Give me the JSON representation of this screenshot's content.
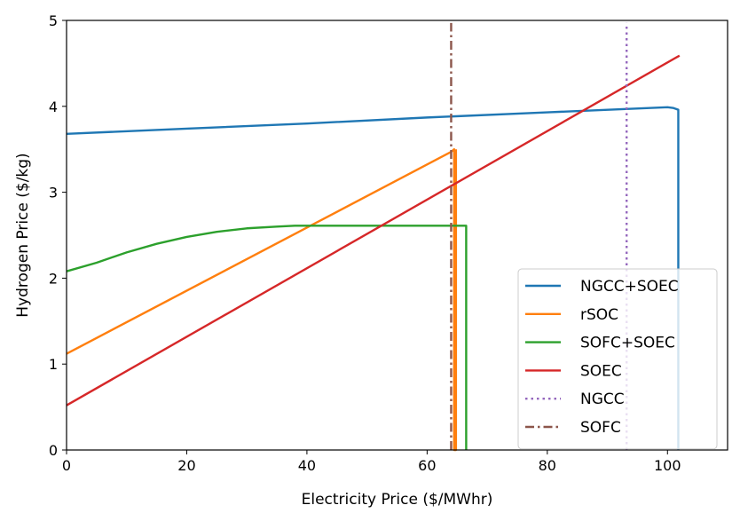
{
  "chart_data": {
    "type": "line",
    "title": "",
    "xlabel": "Electricity Price ($/MWhr)",
    "ylabel": "Hydrogen Price ($/kg)",
    "xlim": [
      0,
      110
    ],
    "ylim": [
      0,
      5
    ],
    "xticks": [
      0,
      20,
      40,
      60,
      80,
      100
    ],
    "yticks": [
      0,
      1,
      2,
      3,
      4,
      5
    ],
    "grid": false,
    "legend_position": "lower-right",
    "series": [
      {
        "name": "NGCC+SOEC",
        "color": "#1f77b4",
        "style": "solid",
        "x": [
          0,
          20,
          40,
          60,
          80,
          100,
          101,
          101.8,
          101.8
        ],
        "y": [
          3.68,
          3.74,
          3.8,
          3.87,
          3.93,
          3.99,
          3.98,
          3.96,
          0
        ]
      },
      {
        "name": "rSOC",
        "color": "#ff7f0e",
        "style": "solid",
        "x": [
          0,
          64,
          64.5,
          64.5,
          64.8,
          64.8
        ],
        "y": [
          1.12,
          3.47,
          3.5,
          0,
          0,
          3.5
        ]
      },
      {
        "name": "SOFC+SOEC",
        "color": "#2ca02c",
        "style": "solid",
        "x": [
          0,
          5,
          10,
          15,
          20,
          25,
          30,
          35,
          38,
          50,
          60,
          65,
          66.5,
          66.5
        ],
        "y": [
          2.08,
          2.18,
          2.3,
          2.4,
          2.48,
          2.54,
          2.58,
          2.6,
          2.61,
          2.61,
          2.61,
          2.61,
          2.61,
          0
        ]
      },
      {
        "name": "SOEC",
        "color": "#d62728",
        "style": "solid",
        "x": [
          0,
          102
        ],
        "y": [
          0.52,
          4.59
        ]
      },
      {
        "name": "NGCC",
        "color": "#9467bd",
        "style": "dotted",
        "x": [
          93.2,
          93.2
        ],
        "y": [
          0,
          4.97
        ]
      },
      {
        "name": "SOFC",
        "color": "#8c564b",
        "style": "dashdot",
        "x": [
          64,
          64
        ],
        "y": [
          0,
          4.97
        ]
      }
    ]
  }
}
